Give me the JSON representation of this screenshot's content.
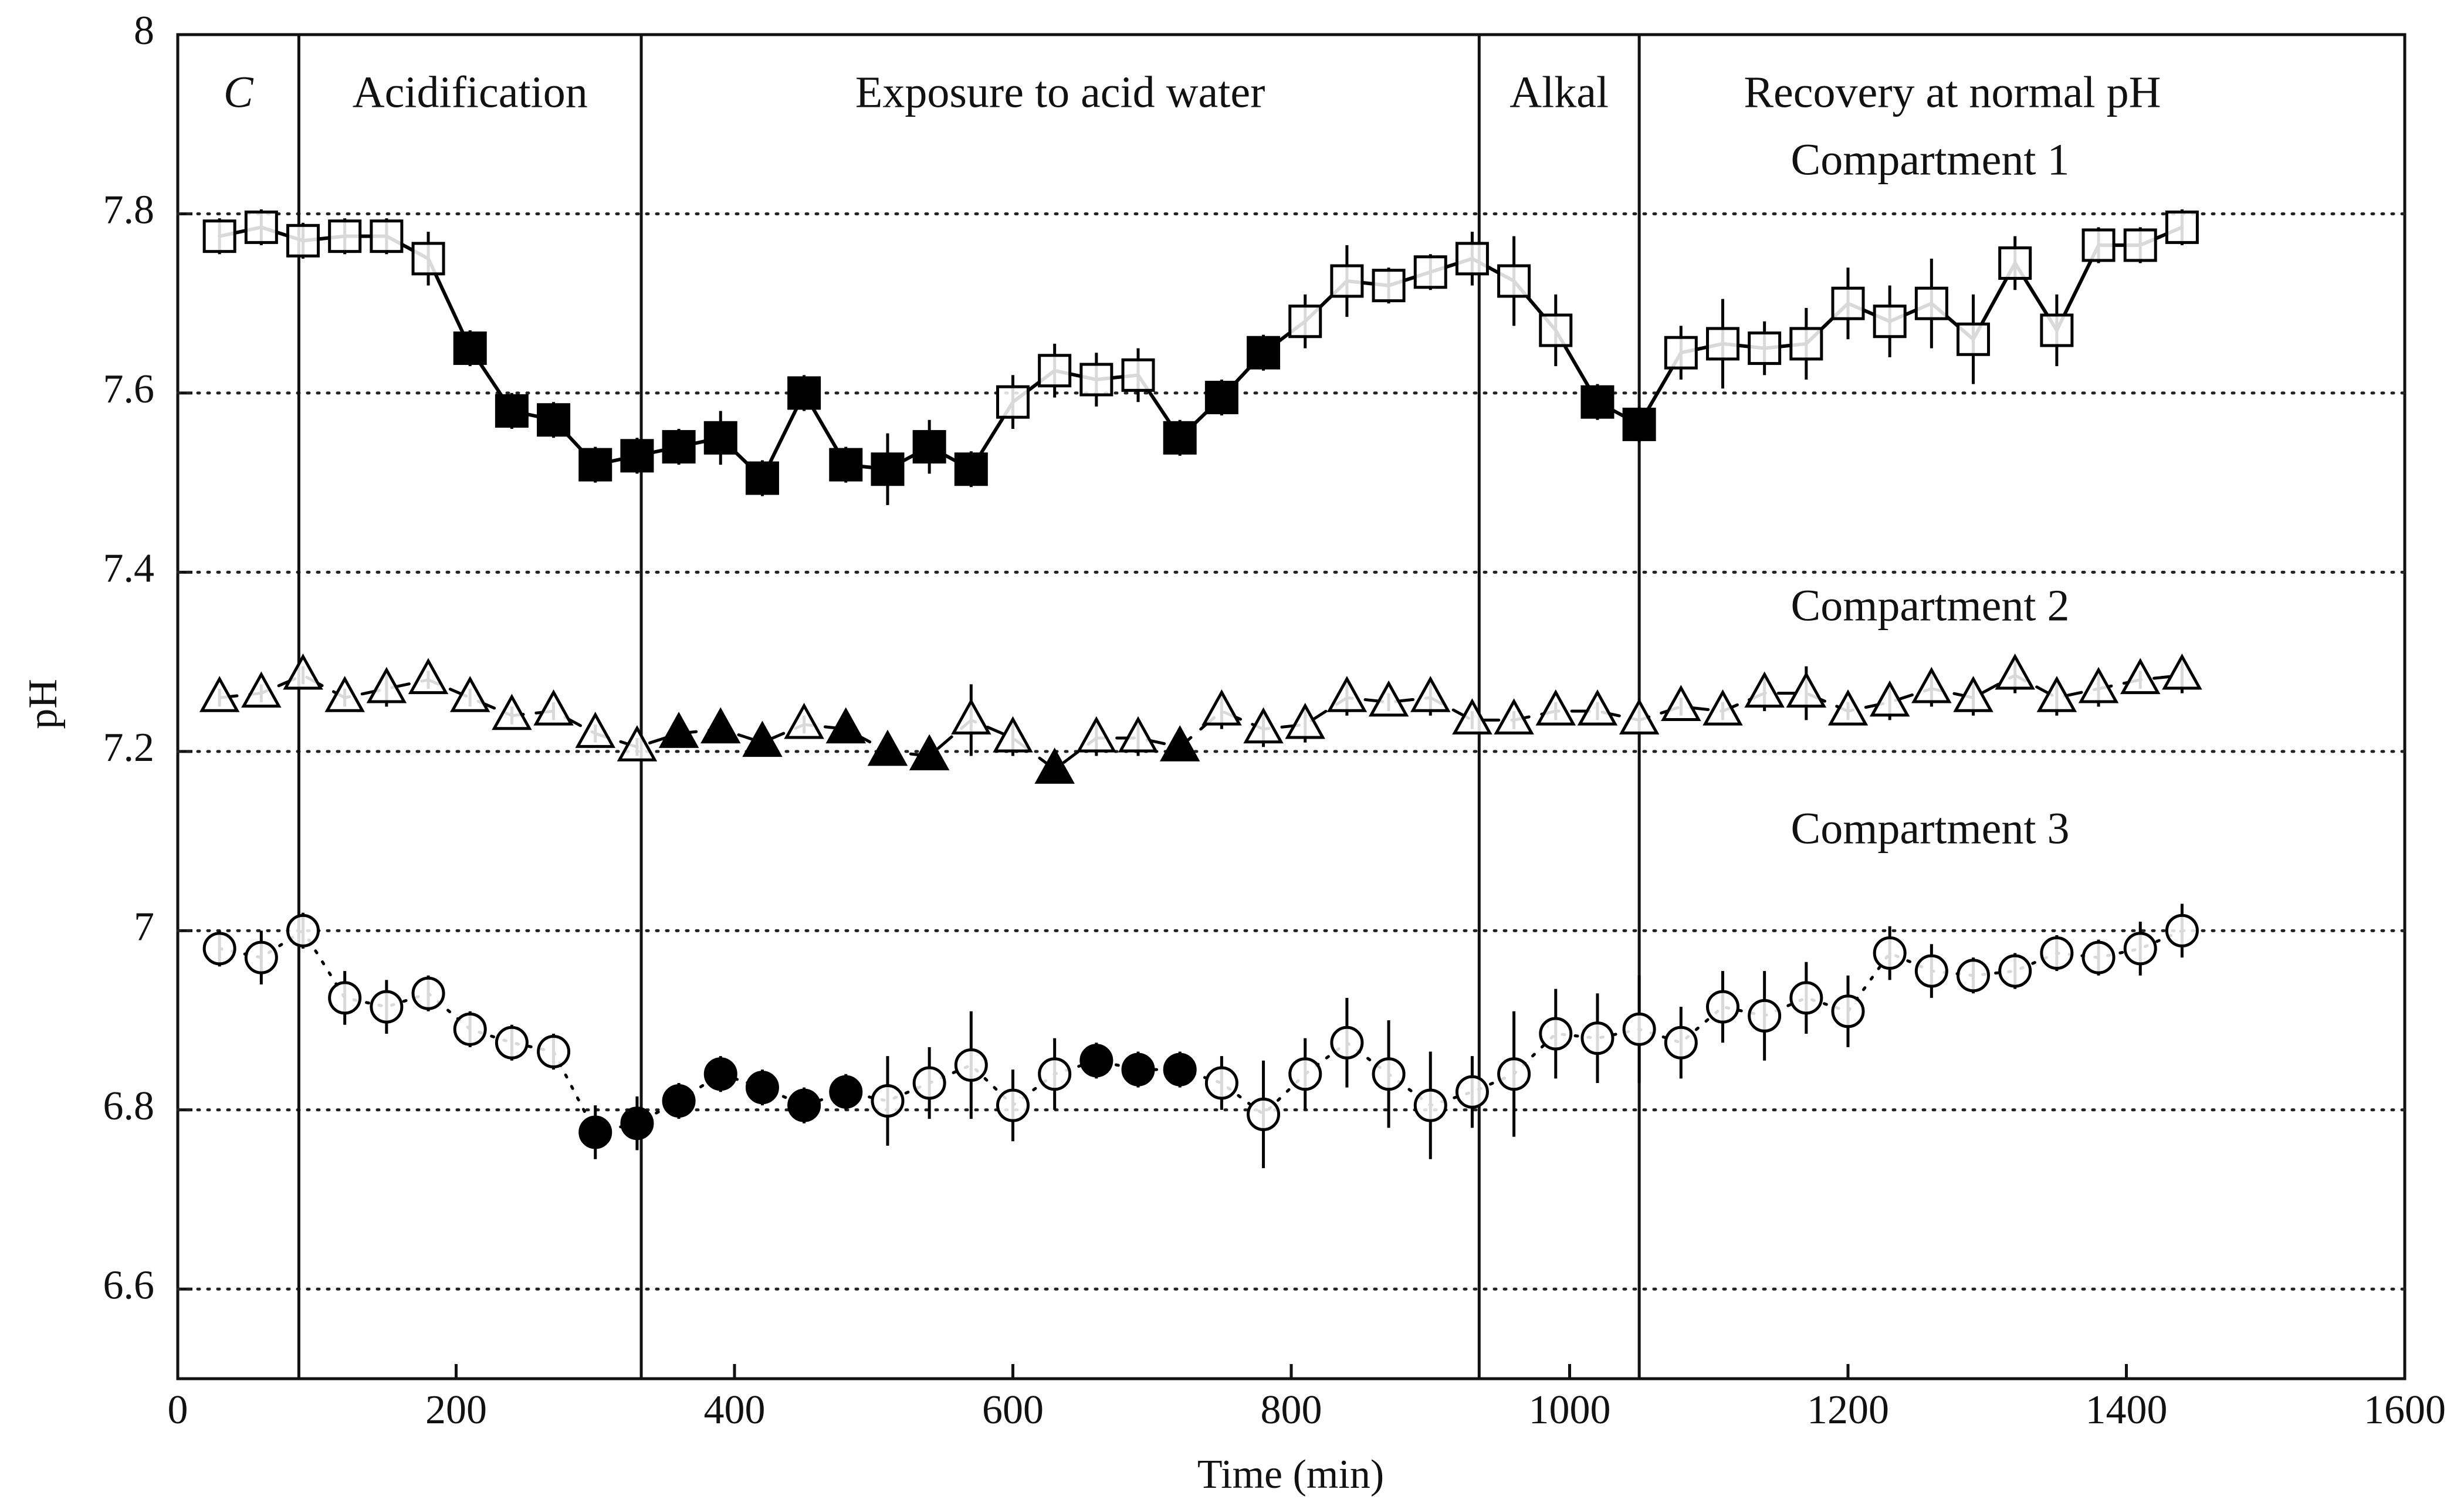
{
  "chart_data": {
    "type": "line",
    "x_label": "Time (min)",
    "y_label": "pH",
    "xlim": [
      0,
      1600
    ],
    "xticks": [
      0,
      200,
      400,
      600,
      800,
      1000,
      1200,
      1400,
      1600
    ],
    "ylim": [
      6.5,
      8
    ],
    "yticks": [
      6.6,
      6.8,
      7,
      7.2,
      7.4,
      7.6,
      7.8,
      8
    ],
    "grid": true,
    "phase_boundaries": [
      87,
      333,
      935,
      1050
    ],
    "phases": [
      "C",
      "Acidification",
      "Exposure to acid water",
      "Alkal",
      "Recovery at normal pH"
    ],
    "x": [
      30,
      60,
      90,
      120,
      150,
      180,
      210,
      240,
      270,
      300,
      330,
      360,
      390,
      420,
      450,
      480,
      510,
      540,
      570,
      600,
      630,
      660,
      690,
      720,
      750,
      780,
      810,
      840,
      870,
      900,
      930,
      960,
      990,
      1020,
      1050,
      1080,
      1110,
      1140,
      1170,
      1200,
      1230,
      1260,
      1290,
      1320,
      1350,
      1380,
      1410,
      1440
    ],
    "series": [
      {
        "name": "Compartment 1",
        "color": "#000000",
        "marker": "square",
        "line_style": "solid",
        "values": [
          7.775,
          7.785,
          7.77,
          7.775,
          7.775,
          7.75,
          7.65,
          7.58,
          7.57,
          7.52,
          7.53,
          7.54,
          7.55,
          7.505,
          7.6,
          7.52,
          7.515,
          7.54,
          7.515,
          7.59,
          7.625,
          7.615,
          7.62,
          7.55,
          7.595,
          7.645,
          7.68,
          7.725,
          7.72,
          7.735,
          7.75,
          7.725,
          7.67,
          7.59,
          7.565,
          7.645,
          7.655,
          7.65,
          7.655,
          7.7,
          7.68,
          7.7,
          7.66,
          7.745,
          7.67,
          7.765,
          7.765,
          7.785
        ],
        "errors": [
          0.02,
          0.02,
          0.02,
          0.02,
          0.02,
          0.03,
          0.02,
          0.02,
          0.02,
          0.02,
          0.02,
          0.02,
          0.03,
          0.02,
          0.02,
          0.02,
          0.04,
          0.03,
          0.02,
          0.03,
          0.03,
          0.03,
          0.03,
          0.02,
          0.02,
          0.02,
          0.03,
          0.04,
          0.02,
          0.02,
          0.03,
          0.05,
          0.04,
          0.02,
          0.02,
          0.03,
          0.05,
          0.03,
          0.04,
          0.04,
          0.04,
          0.05,
          0.05,
          0.03,
          0.04,
          0.02,
          0.02,
          0.02
        ],
        "filled": [
          false,
          false,
          false,
          false,
          false,
          false,
          true,
          true,
          true,
          true,
          true,
          true,
          true,
          true,
          true,
          true,
          true,
          true,
          true,
          false,
          false,
          false,
          false,
          true,
          true,
          true,
          false,
          false,
          false,
          false,
          false,
          false,
          false,
          true,
          true,
          false,
          false,
          false,
          false,
          false,
          false,
          false,
          false,
          false,
          false,
          false,
          false,
          false
        ]
      },
      {
        "name": "Compartment 2",
        "color": "#000000",
        "marker": "triangle",
        "line_style": "dashed",
        "values": [
          7.26,
          7.265,
          7.285,
          7.26,
          7.27,
          7.28,
          7.26,
          7.24,
          7.245,
          7.22,
          7.205,
          7.22,
          7.225,
          7.21,
          7.23,
          7.225,
          7.2,
          7.195,
          7.235,
          7.215,
          7.18,
          7.215,
          7.215,
          7.205,
          7.245,
          7.225,
          7.23,
          7.26,
          7.255,
          7.26,
          7.235,
          7.235,
          7.245,
          7.245,
          7.235,
          7.25,
          7.245,
          7.265,
          7.265,
          7.245,
          7.255,
          7.27,
          7.26,
          7.285,
          7.26,
          7.27,
          7.28,
          7.285
        ],
        "errors": [
          0.01,
          0.01,
          0.01,
          0.01,
          0.02,
          0.01,
          0.01,
          0.01,
          0.01,
          0.01,
          0.01,
          0.01,
          0.01,
          0.01,
          0.01,
          0.01,
          0.01,
          0.01,
          0.04,
          0.02,
          0.01,
          0.02,
          0.02,
          0.01,
          0.02,
          0.02,
          0.02,
          0.02,
          0.01,
          0.02,
          0.01,
          0.01,
          0.01,
          0.01,
          0.01,
          0.01,
          0.01,
          0.02,
          0.03,
          0.01,
          0.02,
          0.02,
          0.02,
          0.02,
          0.02,
          0.02,
          0.01,
          0.02
        ],
        "filled": [
          false,
          false,
          false,
          false,
          false,
          false,
          false,
          false,
          false,
          false,
          false,
          true,
          true,
          true,
          false,
          true,
          true,
          true,
          false,
          false,
          true,
          false,
          false,
          true,
          false,
          false,
          false,
          false,
          false,
          false,
          false,
          false,
          false,
          false,
          false,
          false,
          false,
          false,
          false,
          false,
          false,
          false,
          false,
          false,
          false,
          false,
          false,
          false
        ]
      },
      {
        "name": "Compartment 3",
        "color": "#000000",
        "marker": "circle",
        "line_style": "dotted",
        "values": [
          6.98,
          6.97,
          7.0,
          6.925,
          6.915,
          6.93,
          6.89,
          6.875,
          6.865,
          6.775,
          6.785,
          6.81,
          6.84,
          6.825,
          6.805,
          6.82,
          6.81,
          6.83,
          6.85,
          6.805,
          6.84,
          6.855,
          6.845,
          6.845,
          6.83,
          6.795,
          6.84,
          6.875,
          6.84,
          6.805,
          6.82,
          6.84,
          6.885,
          6.88,
          6.89,
          6.875,
          6.915,
          6.905,
          6.925,
          6.91,
          6.975,
          6.955,
          6.95,
          6.955,
          6.975,
          6.97,
          6.98,
          7.0
        ],
        "errors": [
          0.02,
          0.03,
          0.02,
          0.03,
          0.03,
          0.02,
          0.02,
          0.02,
          0.02,
          0.03,
          0.03,
          0.02,
          0.02,
          0.02,
          0.02,
          0.02,
          0.05,
          0.04,
          0.06,
          0.04,
          0.04,
          0.02,
          0.02,
          0.02,
          0.03,
          0.06,
          0.04,
          0.05,
          0.06,
          0.06,
          0.04,
          0.07,
          0.05,
          0.05,
          0.06,
          0.04,
          0.04,
          0.05,
          0.04,
          0.04,
          0.03,
          0.03,
          0.02,
          0.02,
          0.02,
          0.02,
          0.03,
          0.03
        ],
        "filled": [
          false,
          false,
          false,
          false,
          false,
          false,
          false,
          false,
          false,
          true,
          true,
          true,
          true,
          true,
          true,
          true,
          false,
          false,
          false,
          false,
          false,
          true,
          true,
          true,
          false,
          false,
          false,
          false,
          false,
          false,
          false,
          false,
          false,
          false,
          false,
          false,
          false,
          false,
          false,
          false,
          false,
          false,
          false,
          false,
          false,
          false,
          false,
          false
        ]
      }
    ]
  }
}
